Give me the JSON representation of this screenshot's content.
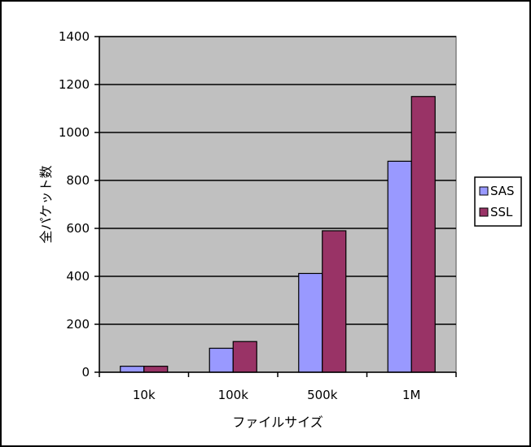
{
  "chart_data": {
    "type": "bar",
    "title": "",
    "xlabel": "ファイルサイズ",
    "ylabel": "全パケット数",
    "categories": [
      "10k",
      "100k",
      "500k",
      "1M"
    ],
    "series": [
      {
        "name": "SAS",
        "values": [
          25,
          100,
          412,
          880
        ],
        "color": "#9999ff"
      },
      {
        "name": "SSL",
        "values": [
          25,
          128,
          590,
          1150
        ],
        "color": "#993366"
      }
    ],
    "ylim": [
      0,
      1400
    ],
    "yticks": [
      0,
      200,
      400,
      600,
      800,
      1000,
      1200,
      1400
    ],
    "grid": true,
    "legend": "right",
    "plot_background": "#c0c0c0"
  }
}
